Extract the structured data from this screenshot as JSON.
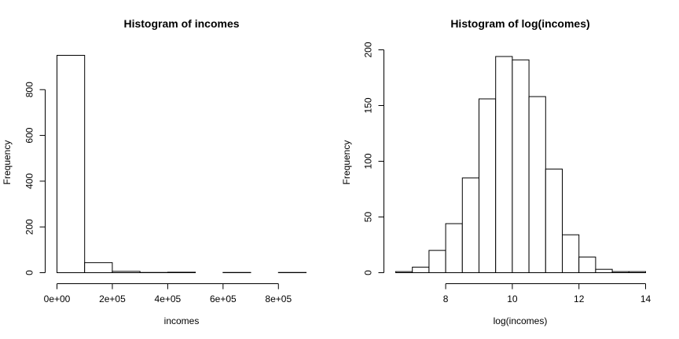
{
  "chart_data": [
    {
      "type": "bar",
      "title": "Histogram of incomes",
      "xlabel": "incomes",
      "ylabel": "Frequency",
      "bin_edges": [
        0,
        100000,
        200000,
        300000,
        400000,
        500000,
        600000,
        700000,
        800000,
        900000
      ],
      "values": [
        950,
        44,
        6,
        1,
        2,
        0,
        1,
        0,
        1
      ],
      "xlim": [
        0,
        900000
      ],
      "ylim": [
        0,
        950
      ],
      "xticks": [
        0,
        200000,
        400000,
        600000,
        800000
      ],
      "xtick_labels": [
        "0e+00",
        "2e+05",
        "4e+05",
        "6e+05",
        "8e+05"
      ],
      "yticks": [
        0,
        200,
        400,
        600,
        800
      ],
      "ytick_labels": [
        "0",
        "200",
        "400",
        "600",
        "800"
      ],
      "grid": false,
      "legend": false
    },
    {
      "type": "bar",
      "title": "Histogram of log(incomes)",
      "xlabel": "log(incomes)",
      "ylabel": "Frequency",
      "bin_edges": [
        6.5,
        7,
        7.5,
        8,
        8.5,
        9,
        9.5,
        10,
        10.5,
        11,
        11.5,
        12,
        12.5,
        13,
        13.5,
        14
      ],
      "values": [
        1,
        5,
        20,
        44,
        85,
        156,
        194,
        191,
        158,
        93,
        34,
        14,
        3,
        1,
        1
      ],
      "xlim": [
        6.5,
        14
      ],
      "ylim": [
        0,
        200
      ],
      "xticks": [
        8,
        10,
        12,
        14
      ],
      "xtick_labels": [
        "8",
        "10",
        "12",
        "14"
      ],
      "yticks": [
        0,
        50,
        100,
        150,
        200
      ],
      "ytick_labels": [
        "0",
        "50",
        "100",
        "150",
        "200"
      ],
      "grid": false,
      "legend": false
    }
  ]
}
